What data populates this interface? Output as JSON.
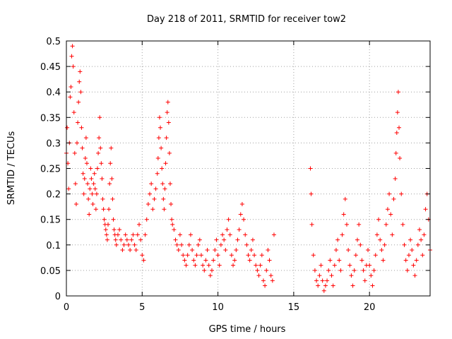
{
  "chart_data": {
    "type": "scatter",
    "title": "Day 218 of 2011, SRMTID for receiver tow2",
    "xlabel": "GPS time / hours",
    "ylabel": "SRMTID / TECUs",
    "xlim": [
      0,
      24
    ],
    "ylim": [
      0,
      0.5
    ],
    "x_ticks": [
      0,
      5,
      10,
      15,
      20
    ],
    "x_tick_labels": [
      "0",
      "5",
      "10",
      "15",
      "20"
    ],
    "y_ticks": [
      0,
      0.05,
      0.1,
      0.15,
      0.2,
      0.25,
      0.3,
      0.35,
      0.4,
      0.45,
      0.5
    ],
    "y_tick_labels": [
      "0",
      "0.05",
      "0.1",
      "0.15",
      "0.2",
      "0.25",
      "0.3",
      "0.35",
      "0.4",
      "0.45",
      "0.5"
    ],
    "grid": true,
    "marker": "+",
    "color": "#ff0000",
    "series": [
      {
        "name": "SRMTID",
        "points": [
          [
            0.0,
            0.28
          ],
          [
            0.05,
            0.33
          ],
          [
            0.1,
            0.26
          ],
          [
            0.15,
            0.21
          ],
          [
            0.2,
            0.3
          ],
          [
            0.25,
            0.39
          ],
          [
            0.3,
            0.41
          ],
          [
            0.35,
            0.47
          ],
          [
            0.4,
            0.49
          ],
          [
            0.45,
            0.45
          ],
          [
            0.5,
            0.36
          ],
          [
            0.55,
            0.28
          ],
          [
            0.6,
            0.22
          ],
          [
            0.65,
            0.18
          ],
          [
            0.7,
            0.3
          ],
          [
            0.75,
            0.34
          ],
          [
            0.8,
            0.38
          ],
          [
            0.85,
            0.42
          ],
          [
            0.9,
            0.44
          ],
          [
            0.95,
            0.4
          ],
          [
            1.0,
            0.33
          ],
          [
            1.05,
            0.29
          ],
          [
            1.1,
            0.24
          ],
          [
            1.15,
            0.2
          ],
          [
            1.2,
            0.23
          ],
          [
            1.25,
            0.27
          ],
          [
            1.3,
            0.31
          ],
          [
            1.35,
            0.26
          ],
          [
            1.4,
            0.22
          ],
          [
            1.45,
            0.19
          ],
          [
            1.5,
            0.16
          ],
          [
            1.55,
            0.21
          ],
          [
            1.6,
            0.25
          ],
          [
            1.65,
            0.23
          ],
          [
            1.7,
            0.2
          ],
          [
            1.75,
            0.18
          ],
          [
            1.8,
            0.22
          ],
          [
            1.85,
            0.24
          ],
          [
            1.9,
            0.21
          ],
          [
            1.95,
            0.17
          ],
          [
            2.0,
            0.2
          ],
          [
            2.05,
            0.25
          ],
          [
            2.1,
            0.28
          ],
          [
            2.15,
            0.31
          ],
          [
            2.2,
            0.35
          ],
          [
            2.25,
            0.29
          ],
          [
            2.3,
            0.26
          ],
          [
            2.35,
            0.23
          ],
          [
            2.4,
            0.19
          ],
          [
            2.45,
            0.17
          ],
          [
            2.5,
            0.15
          ],
          [
            2.55,
            0.14
          ],
          [
            2.6,
            0.13
          ],
          [
            2.65,
            0.12
          ],
          [
            2.7,
            0.11
          ],
          [
            2.75,
            0.14
          ],
          [
            2.8,
            0.17
          ],
          [
            2.85,
            0.22
          ],
          [
            2.9,
            0.26
          ],
          [
            2.95,
            0.29
          ],
          [
            3.0,
            0.23
          ],
          [
            3.05,
            0.19
          ],
          [
            3.1,
            0.15
          ],
          [
            3.15,
            0.13
          ],
          [
            3.2,
            0.12
          ],
          [
            3.25,
            0.11
          ],
          [
            3.3,
            0.1
          ],
          [
            3.4,
            0.12
          ],
          [
            3.5,
            0.13
          ],
          [
            3.6,
            0.11
          ],
          [
            3.7,
            0.09
          ],
          [
            3.8,
            0.1
          ],
          [
            3.9,
            0.12
          ],
          [
            4.0,
            0.11
          ],
          [
            4.1,
            0.1
          ],
          [
            4.2,
            0.09
          ],
          [
            4.3,
            0.11
          ],
          [
            4.4,
            0.12
          ],
          [
            4.5,
            0.1
          ],
          [
            4.6,
            0.09
          ],
          [
            4.7,
            0.12
          ],
          [
            4.8,
            0.14
          ],
          [
            4.9,
            0.11
          ],
          [
            5.0,
            0.08
          ],
          [
            5.1,
            0.07
          ],
          [
            5.2,
            0.12
          ],
          [
            5.3,
            0.15
          ],
          [
            5.4,
            0.18
          ],
          [
            5.5,
            0.2
          ],
          [
            5.6,
            0.22
          ],
          [
            5.7,
            0.17
          ],
          [
            5.8,
            0.19
          ],
          [
            5.9,
            0.21
          ],
          [
            6.0,
            0.24
          ],
          [
            6.05,
            0.27
          ],
          [
            6.1,
            0.31
          ],
          [
            6.15,
            0.35
          ],
          [
            6.2,
            0.33
          ],
          [
            6.25,
            0.29
          ],
          [
            6.3,
            0.25
          ],
          [
            6.35,
            0.22
          ],
          [
            6.4,
            0.19
          ],
          [
            6.45,
            0.17
          ],
          [
            6.5,
            0.21
          ],
          [
            6.55,
            0.26
          ],
          [
            6.6,
            0.31
          ],
          [
            6.65,
            0.36
          ],
          [
            6.7,
            0.38
          ],
          [
            6.75,
            0.34
          ],
          [
            6.8,
            0.28
          ],
          [
            6.85,
            0.22
          ],
          [
            6.9,
            0.18
          ],
          [
            6.95,
            0.15
          ],
          [
            7.0,
            0.14
          ],
          [
            7.1,
            0.13
          ],
          [
            7.2,
            0.11
          ],
          [
            7.3,
            0.1
          ],
          [
            7.4,
            0.09
          ],
          [
            7.5,
            0.12
          ],
          [
            7.6,
            0.1
          ],
          [
            7.7,
            0.08
          ],
          [
            7.8,
            0.07
          ],
          [
            7.9,
            0.06
          ],
          [
            8.0,
            0.08
          ],
          [
            8.1,
            0.1
          ],
          [
            8.2,
            0.12
          ],
          [
            8.3,
            0.09
          ],
          [
            8.4,
            0.07
          ],
          [
            8.5,
            0.06
          ],
          [
            8.6,
            0.08
          ],
          [
            8.7,
            0.1
          ],
          [
            8.8,
            0.11
          ],
          [
            8.9,
            0.08
          ],
          [
            9.0,
            0.06
          ],
          [
            9.1,
            0.05
          ],
          [
            9.2,
            0.07
          ],
          [
            9.3,
            0.09
          ],
          [
            9.4,
            0.06
          ],
          [
            9.5,
            0.04
          ],
          [
            9.6,
            0.05
          ],
          [
            9.7,
            0.07
          ],
          [
            9.8,
            0.09
          ],
          [
            9.9,
            0.11
          ],
          [
            10.0,
            0.08
          ],
          [
            10.1,
            0.06
          ],
          [
            10.2,
            0.1
          ],
          [
            10.3,
            0.12
          ],
          [
            10.4,
            0.11
          ],
          [
            10.5,
            0.09
          ],
          [
            10.6,
            0.13
          ],
          [
            10.7,
            0.15
          ],
          [
            10.8,
            0.12
          ],
          [
            10.9,
            0.08
          ],
          [
            11.0,
            0.06
          ],
          [
            11.1,
            0.07
          ],
          [
            11.2,
            0.09
          ],
          [
            11.3,
            0.11
          ],
          [
            11.4,
            0.13
          ],
          [
            11.5,
            0.16
          ],
          [
            11.6,
            0.18
          ],
          [
            11.7,
            0.15
          ],
          [
            11.8,
            0.12
          ],
          [
            11.9,
            0.1
          ],
          [
            12.0,
            0.08
          ],
          [
            12.1,
            0.07
          ],
          [
            12.2,
            0.09
          ],
          [
            12.3,
            0.11
          ],
          [
            12.4,
            0.08
          ],
          [
            12.5,
            0.06
          ],
          [
            12.6,
            0.05
          ],
          [
            12.7,
            0.04
          ],
          [
            12.8,
            0.06
          ],
          [
            12.9,
            0.08
          ],
          [
            13.0,
            0.03
          ],
          [
            13.1,
            0.02
          ],
          [
            13.2,
            0.05
          ],
          [
            13.3,
            0.09
          ],
          [
            13.4,
            0.07
          ],
          [
            13.5,
            0.04
          ],
          [
            13.6,
            0.03
          ],
          [
            13.7,
            0.12
          ],
          [
            16.1,
            0.25
          ],
          [
            16.15,
            0.2
          ],
          [
            16.2,
            0.14
          ],
          [
            16.3,
            0.08
          ],
          [
            16.4,
            0.05
          ],
          [
            16.5,
            0.03
          ],
          [
            16.6,
            0.02
          ],
          [
            16.7,
            0.04
          ],
          [
            16.8,
            0.06
          ],
          [
            16.9,
            0.03
          ],
          [
            17.0,
            0.01
          ],
          [
            17.1,
            0.02
          ],
          [
            17.2,
            0.03
          ],
          [
            17.3,
            0.05
          ],
          [
            17.4,
            0.07
          ],
          [
            17.5,
            0.04
          ],
          [
            17.6,
            0.02
          ],
          [
            17.7,
            0.06
          ],
          [
            17.8,
            0.09
          ],
          [
            17.9,
            0.11
          ],
          [
            18.0,
            0.07
          ],
          [
            18.1,
            0.05
          ],
          [
            18.2,
            0.12
          ],
          [
            18.3,
            0.16
          ],
          [
            18.4,
            0.19
          ],
          [
            18.5,
            0.14
          ],
          [
            18.6,
            0.09
          ],
          [
            18.7,
            0.06
          ],
          [
            18.8,
            0.04
          ],
          [
            18.9,
            0.02
          ],
          [
            19.0,
            0.05
          ],
          [
            19.1,
            0.08
          ],
          [
            19.2,
            0.11
          ],
          [
            19.3,
            0.14
          ],
          [
            19.4,
            0.1
          ],
          [
            19.5,
            0.07
          ],
          [
            19.6,
            0.05
          ],
          [
            19.7,
            0.03
          ],
          [
            19.8,
            0.06
          ],
          [
            19.9,
            0.09
          ],
          [
            20.0,
            0.06
          ],
          [
            20.1,
            0.04
          ],
          [
            20.2,
            0.02
          ],
          [
            20.3,
            0.05
          ],
          [
            20.4,
            0.08
          ],
          [
            20.5,
            0.12
          ],
          [
            20.6,
            0.15
          ],
          [
            20.7,
            0.11
          ],
          [
            20.8,
            0.09
          ],
          [
            20.9,
            0.07
          ],
          [
            21.0,
            0.1
          ],
          [
            21.1,
            0.14
          ],
          [
            21.2,
            0.17
          ],
          [
            21.3,
            0.2
          ],
          [
            21.4,
            0.16
          ],
          [
            21.5,
            0.12
          ],
          [
            21.6,
            0.19
          ],
          [
            21.7,
            0.23
          ],
          [
            21.75,
            0.28
          ],
          [
            21.8,
            0.32
          ],
          [
            21.85,
            0.36
          ],
          [
            21.9,
            0.4
          ],
          [
            21.95,
            0.33
          ],
          [
            22.0,
            0.27
          ],
          [
            22.1,
            0.2
          ],
          [
            22.2,
            0.14
          ],
          [
            22.3,
            0.1
          ],
          [
            22.4,
            0.07
          ],
          [
            22.5,
            0.05
          ],
          [
            22.6,
            0.08
          ],
          [
            22.7,
            0.11
          ],
          [
            22.8,
            0.09
          ],
          [
            22.9,
            0.06
          ],
          [
            23.0,
            0.04
          ],
          [
            23.1,
            0.07
          ],
          [
            23.2,
            0.1
          ],
          [
            23.3,
            0.13
          ],
          [
            23.4,
            0.11
          ],
          [
            23.5,
            0.08
          ],
          [
            23.6,
            0.12
          ],
          [
            23.7,
            0.17
          ],
          [
            23.8,
            0.2
          ],
          [
            23.9,
            0.15
          ],
          [
            24.0,
            0.09
          ]
        ]
      }
    ]
  }
}
